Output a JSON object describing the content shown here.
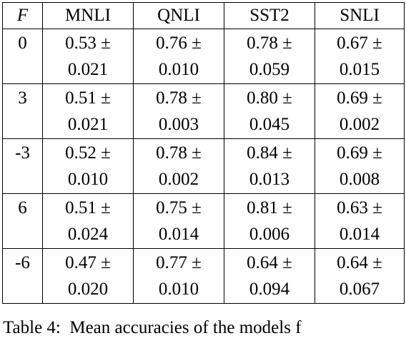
{
  "table": {
    "header": [
      "F",
      "MNLI",
      "QNLI",
      "SST2",
      "SNLI"
    ],
    "rows": [
      {
        "F": "0",
        "cells": [
          [
            "0.53 ±",
            "0.021"
          ],
          [
            "0.76 ±",
            "0.010"
          ],
          [
            "0.78 ±",
            "0.059"
          ],
          [
            "0.67 ±",
            "0.015"
          ]
        ]
      },
      {
        "F": "3",
        "cells": [
          [
            "0.51 ±",
            "0.021"
          ],
          [
            "0.78 ±",
            "0.003"
          ],
          [
            "0.80 ±",
            "0.045"
          ],
          [
            "0.69 ±",
            "0.002"
          ]
        ]
      },
      {
        "F": "-3",
        "cells": [
          [
            "0.52 ±",
            "0.010"
          ],
          [
            "0.78 ±",
            "0.002"
          ],
          [
            "0.84 ±",
            "0.013"
          ],
          [
            "0.69 ±",
            "0.008"
          ]
        ]
      },
      {
        "F": "6",
        "cells": [
          [
            "0.51 ±",
            "0.024"
          ],
          [
            "0.75 ±",
            "0.014"
          ],
          [
            "0.81 ±",
            "0.006"
          ],
          [
            "0.63 ±",
            "0.014"
          ]
        ]
      },
      {
        "F": "-6",
        "cells": [
          [
            "0.47 ±",
            "0.020"
          ],
          [
            "0.77 ±",
            "0.010"
          ],
          [
            "0.64 ±",
            "0.094"
          ],
          [
            "0.64 ±",
            "0.067"
          ]
        ]
      }
    ]
  },
  "caption": "Table 4:  Mean accuracies of the models f"
}
